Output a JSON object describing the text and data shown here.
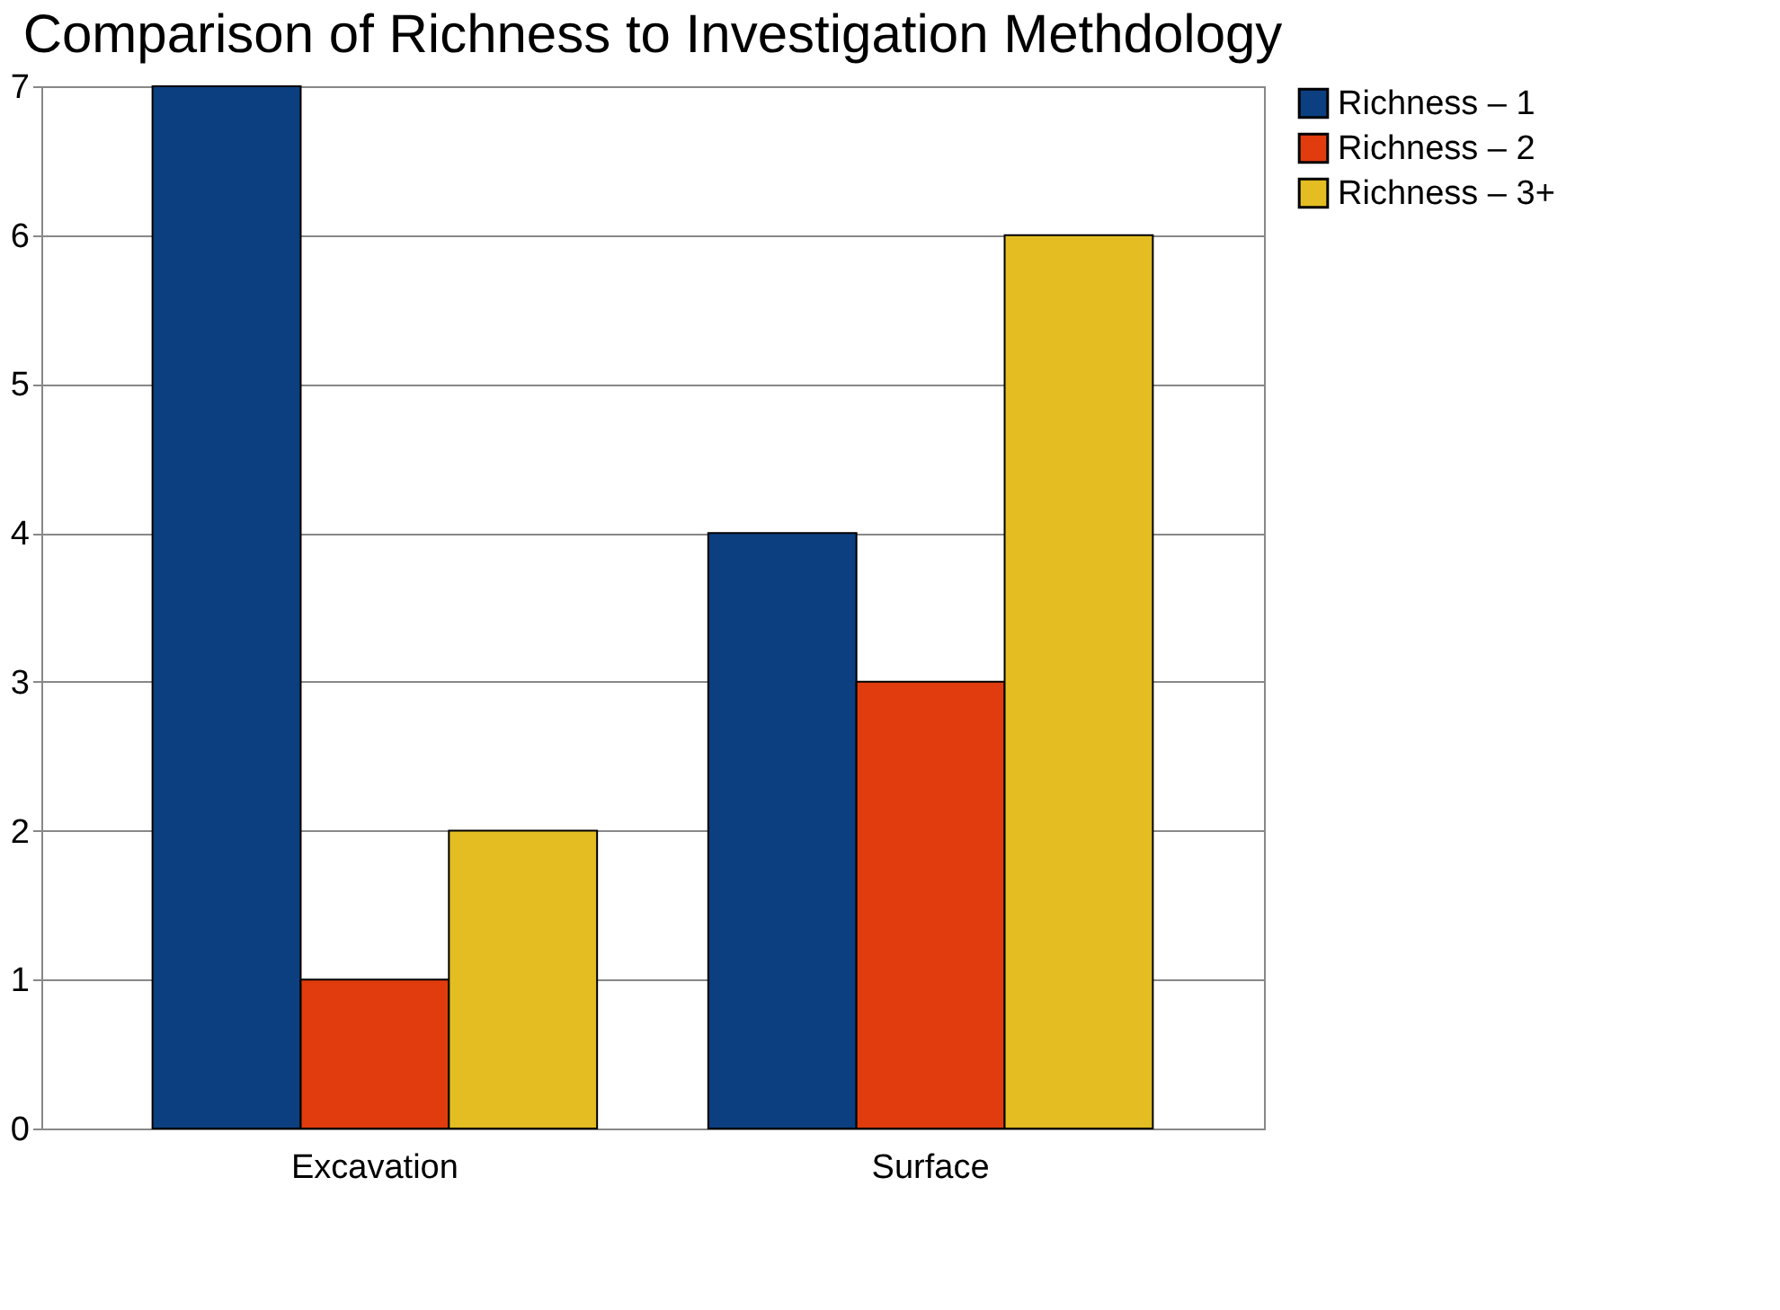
{
  "chart_data": {
    "type": "bar",
    "title": "Comparison of Richness to Investigation Methdology",
    "categories": [
      "Excavation",
      "Surface"
    ],
    "series": [
      {
        "name": "Richness – 1",
        "color": "#0b3f80",
        "values": [
          7,
          4
        ]
      },
      {
        "name": "Richness – 2",
        "color": "#e03c0e",
        "values": [
          1,
          3
        ]
      },
      {
        "name": "Richness – 3+",
        "color": "#e3bd22",
        "values": [
          2,
          6
        ]
      }
    ],
    "ylim": [
      0,
      7
    ],
    "yticks": [
      0,
      1,
      2,
      3,
      4,
      5,
      6,
      7
    ],
    "grid": "y",
    "legend": "right"
  }
}
